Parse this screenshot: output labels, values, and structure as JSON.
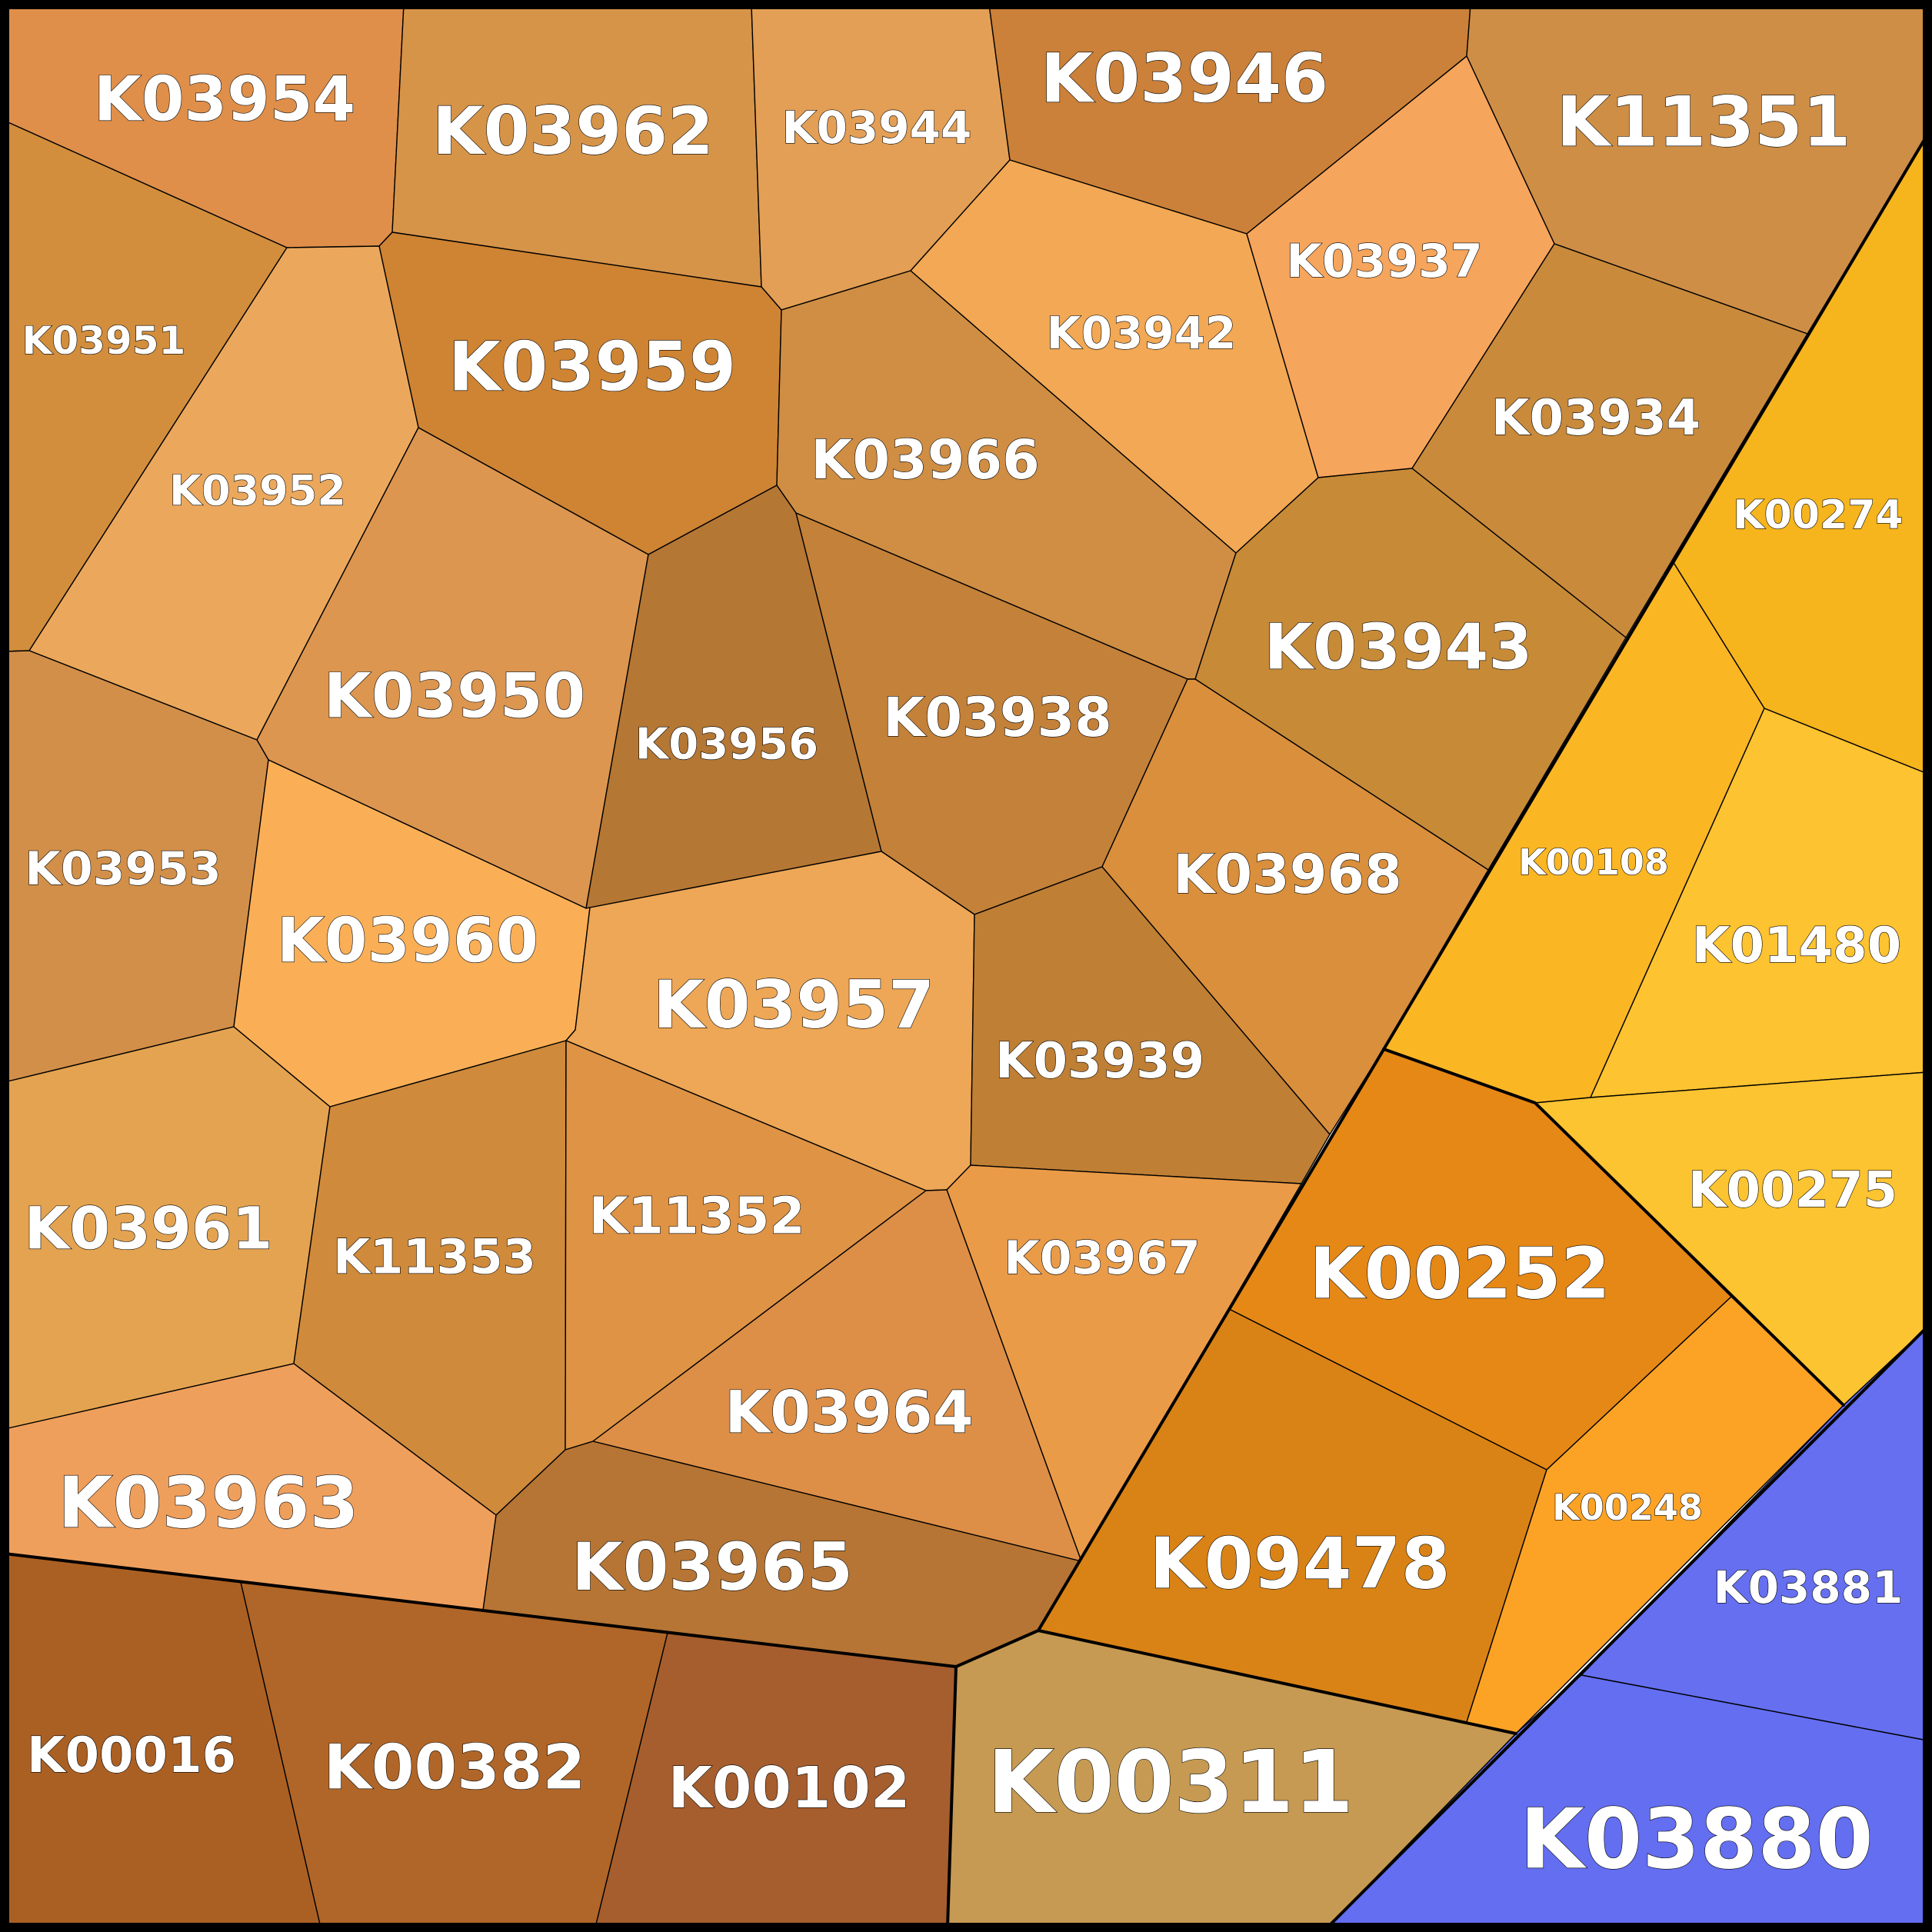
{
  "cells": [
    {
      "id": "K03954",
      "color": "#DF8F4A"
    },
    {
      "id": "K03962",
      "color": "#D69449"
    },
    {
      "id": "K03944",
      "color": "#E39F55"
    },
    {
      "id": "K03946",
      "color": "#CB8139"
    },
    {
      "id": "K11351",
      "color": "#CE8E46"
    },
    {
      "id": "K03951",
      "color": "#D28E3C"
    },
    {
      "id": "K03959",
      "color": "#CE8433"
    },
    {
      "id": "K03942",
      "color": "#F2A854"
    },
    {
      "id": "K03937",
      "color": "#F6A55C"
    },
    {
      "id": "K03934",
      "color": "#C98A3B"
    },
    {
      "id": "K03952",
      "color": "#EBA85C"
    },
    {
      "id": "K03966",
      "color": "#CF8E44"
    },
    {
      "id": "K03950",
      "color": "#DC9650"
    },
    {
      "id": "K03956",
      "color": "#B57734"
    },
    {
      "id": "K03938",
      "color": "#C38139"
    },
    {
      "id": "K03943",
      "color": "#C78A37"
    },
    {
      "id": "K03953",
      "color": "#D28F49"
    },
    {
      "id": "K03960",
      "color": "#FAAF57"
    },
    {
      "id": "K03968",
      "color": "#D98F3C"
    },
    {
      "id": "K03957",
      "color": "#EDA756"
    },
    {
      "id": "K03939",
      "color": "#BF7F34"
    },
    {
      "id": "K03961",
      "color": "#E4A350"
    },
    {
      "id": "K11353",
      "color": "#CF8A3B"
    },
    {
      "id": "K11352",
      "color": "#DE9345"
    },
    {
      "id": "K03967",
      "color": "#EA9B48"
    },
    {
      "id": "K03964",
      "color": "#DD8F47"
    },
    {
      "id": "K03963",
      "color": "#EF9F5C"
    },
    {
      "id": "K03965",
      "color": "#B67534"
    },
    {
      "id": "K00274",
      "color": "#F6B41D"
    },
    {
      "id": "K00108",
      "color": "#FBB624"
    },
    {
      "id": "K01480",
      "color": "#FDC330"
    },
    {
      "id": "K00275",
      "color": "#FDC431"
    },
    {
      "id": "K00252",
      "color": "#E68815"
    },
    {
      "id": "K09478",
      "color": "#D98316"
    },
    {
      "id": "K00248",
      "color": "#FCA325"
    },
    {
      "id": "K03881",
      "color": "#656FF0"
    },
    {
      "id": "K03880",
      "color": "#636EF0"
    },
    {
      "id": "K00016",
      "color": "#AB6023"
    },
    {
      "id": "K00382",
      "color": "#B06628"
    },
    {
      "id": "K00102",
      "color": "#A65E2E"
    },
    {
      "id": "K00311",
      "color": "#C69A52"
    }
  ]
}
